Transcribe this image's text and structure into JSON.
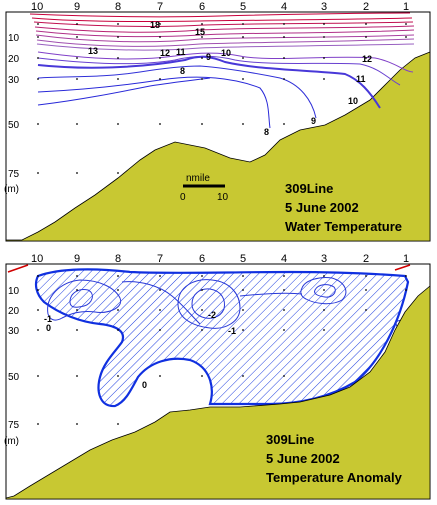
{
  "chart_data": [
    {
      "type": "contour",
      "station_labels": [
        "10",
        "9",
        "8",
        "7",
        "6",
        "5",
        "4",
        "3",
        "2",
        "1"
      ],
      "depth_labels": [
        "10",
        "20",
        "30",
        "50",
        "75"
      ],
      "depth_unit": "(m)",
      "title_lines": [
        "309Line",
        "5 June 2002",
        "Water Temperature"
      ],
      "scale": {
        "label": "nmile",
        "start": "0",
        "end": "10"
      },
      "contour_labels": [
        "18",
        "15",
        "13",
        "12",
        "11",
        "10",
        "9",
        "8",
        "12",
        "11",
        "10",
        "8",
        "9"
      ],
      "colors": {
        "warm": "#c8003c",
        "cool": "#2828d8",
        "land": "#c8c832",
        "frame": "#000000"
      }
    },
    {
      "type": "contour",
      "station_labels": [
        "10",
        "9",
        "8",
        "7",
        "6",
        "5",
        "4",
        "3",
        "2",
        "1"
      ],
      "depth_labels": [
        "10",
        "20",
        "30",
        "50",
        "75"
      ],
      "depth_unit": "(m)",
      "title_lines": [
        "309Line",
        "5 June 2002",
        "Temperature Anomaly"
      ],
      "contour_labels": [
        "-1",
        "0",
        "-2",
        "-1",
        "0"
      ],
      "colors": {
        "zero_line": "#1030e0",
        "hatch": "#2040e0",
        "land": "#c8c832",
        "frame": "#000000"
      }
    }
  ]
}
